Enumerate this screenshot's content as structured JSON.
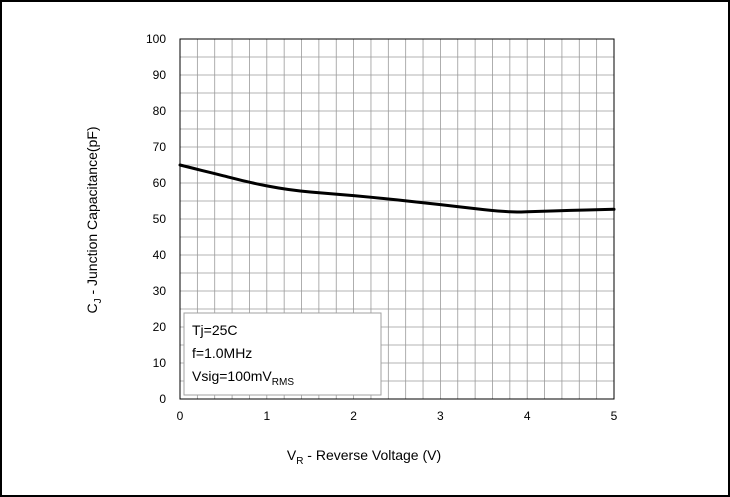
{
  "chart_data": {
    "type": "line",
    "title": "",
    "xlabel": {
      "main": "V",
      "subscript": "R",
      "rest": " - Reverse Voltage (V)"
    },
    "ylabel": {
      "main": "C",
      "subscript": "J",
      "rest": " - Junction Capacitance(pF)"
    },
    "xlim": [
      0,
      5
    ],
    "ylim": [
      0,
      100
    ],
    "x_ticks": [
      0,
      1,
      2,
      3,
      4,
      5
    ],
    "y_ticks": [
      0,
      10,
      20,
      30,
      40,
      50,
      60,
      70,
      80,
      90,
      100
    ],
    "grid": true,
    "grid_minor_x_step": 0.2,
    "grid_minor_y_step": 5,
    "series": [
      {
        "name": "",
        "color": "#000000",
        "x": [
          0,
          0.25,
          0.5,
          0.75,
          1,
          1.25,
          1.5,
          2,
          2.5,
          3,
          3.5,
          3.8,
          4,
          4.5,
          5
        ],
        "y": [
          65,
          63.5,
          62,
          60.5,
          59.2,
          58.2,
          57.5,
          56.5,
          55.3,
          54,
          52.6,
          52,
          52,
          52.4,
          52.7
        ]
      }
    ],
    "legend": {
      "placement": "bottom-left",
      "line1": "Tj=25C",
      "line2": "f=1.0MHz",
      "line3_main": "Vsig=100mV",
      "line3_sub": "RMS"
    }
  }
}
